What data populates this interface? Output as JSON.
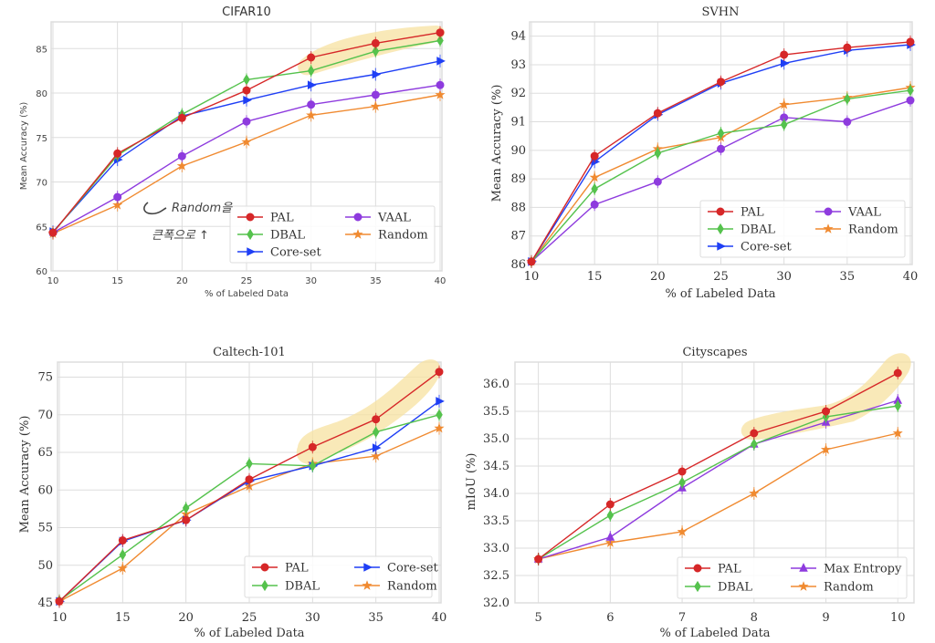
{
  "colors": {
    "PAL": "#d62728",
    "DBAL": "#55c24d",
    "Core-set": "#1f3ff5",
    "VAAL": "#8e3bde",
    "Random": "#f08a30",
    "Max Entropy": "#8e3bde",
    "highlight": "#f7e2a0",
    "grid": "#dddddd",
    "frame": "#dddddd"
  },
  "chart_data": [
    {
      "id": "cifar10",
      "type": "line",
      "title": "CIFAR10",
      "xlabel": "% of Labeled Data",
      "ylabel": "Mean Accuracy (%)",
      "x": [
        10,
        15,
        20,
        25,
        30,
        35,
        40
      ],
      "xticks": [
        "10",
        "15",
        "20",
        "25",
        "30",
        "35",
        "40"
      ],
      "yticks": [
        "60",
        "65",
        "70",
        "75",
        "80",
        "85"
      ],
      "xlim": [
        10,
        40
      ],
      "ylim": [
        60,
        88
      ],
      "grid": true,
      "legend_position": "lower-right",
      "legend_columns": 2,
      "series": [
        {
          "name": "PAL",
          "marker": "circle",
          "values": [
            64.3,
            73.2,
            77.2,
            80.3,
            84.0,
            85.6,
            86.8
          ]
        },
        {
          "name": "DBAL",
          "marker": "diamond",
          "values": [
            64.3,
            73.0,
            77.6,
            81.5,
            82.5,
            84.7,
            85.9
          ]
        },
        {
          "name": "Core-set",
          "marker": "triangle-right",
          "values": [
            64.4,
            72.5,
            77.4,
            79.2,
            80.9,
            82.1,
            83.6
          ]
        },
        {
          "name": "VAAL",
          "marker": "circle",
          "values": [
            64.3,
            68.3,
            72.9,
            76.8,
            78.7,
            79.8,
            80.9
          ]
        },
        {
          "name": "Random",
          "marker": "star",
          "values": [
            64.2,
            67.4,
            71.8,
            74.5,
            77.5,
            78.5,
            79.8
          ]
        }
      ],
      "legend_order": [
        "PAL",
        "DBAL",
        "Core-set",
        "VAAL",
        "Random"
      ],
      "annotation": {
        "text_line1": "Random을",
        "text_line2": "큰폭으로 ↑"
      }
    },
    {
      "id": "svhn",
      "type": "line",
      "title": "SVHN",
      "xlabel": "% of Labeled Data",
      "ylabel": "Mean Accuracy (%)",
      "x": [
        10,
        15,
        20,
        25,
        30,
        35,
        40
      ],
      "xticks": [
        "10",
        "15",
        "20",
        "25",
        "30",
        "35",
        "40"
      ],
      "yticks": [
        "86",
        "87",
        "88",
        "89",
        "90",
        "91",
        "92",
        "93",
        "94"
      ],
      "xlim": [
        10,
        40
      ],
      "ylim": [
        86,
        94.5
      ],
      "grid": true,
      "legend_position": "lower-right",
      "legend_columns": 2,
      "series": [
        {
          "name": "PAL",
          "marker": "circle",
          "values": [
            86.1,
            89.8,
            91.3,
            92.4,
            93.35,
            93.6,
            93.8
          ]
        },
        {
          "name": "DBAL",
          "marker": "diamond",
          "values": [
            86.1,
            88.65,
            89.9,
            90.6,
            90.9,
            91.8,
            92.1
          ]
        },
        {
          "name": "Core-set",
          "marker": "triangle-right",
          "values": [
            86.1,
            89.6,
            91.25,
            92.35,
            93.05,
            93.5,
            93.7
          ]
        },
        {
          "name": "VAAL",
          "marker": "circle",
          "values": [
            86.1,
            88.1,
            88.9,
            90.05,
            91.15,
            91.0,
            91.75
          ]
        },
        {
          "name": "Random",
          "marker": "star",
          "values": [
            86.1,
            89.05,
            90.05,
            90.45,
            91.6,
            91.85,
            92.2
          ]
        }
      ],
      "legend_order": [
        "PAL",
        "DBAL",
        "Core-set",
        "VAAL",
        "Random"
      ]
    },
    {
      "id": "caltech101",
      "type": "line",
      "title": "Caltech-101",
      "xlabel": "% of Labeled Data",
      "ylabel": "Mean Accuracy (%)",
      "x": [
        10,
        15,
        20,
        25,
        30,
        35,
        40
      ],
      "xticks": [
        "10",
        "15",
        "20",
        "25",
        "30",
        "35",
        "40"
      ],
      "yticks": [
        "45",
        "50",
        "55",
        "60",
        "65",
        "70",
        "75"
      ],
      "xlim": [
        10,
        40
      ],
      "ylim": [
        45,
        77
      ],
      "grid": true,
      "legend_position": "lower-right",
      "legend_columns": 2,
      "series": [
        {
          "name": "PAL",
          "marker": "circle",
          "values": [
            45.2,
            53.3,
            56.0,
            61.4,
            65.7,
            69.4,
            75.7
          ]
        },
        {
          "name": "DBAL",
          "marker": "diamond",
          "values": [
            45.3,
            51.4,
            57.6,
            63.5,
            63.2,
            67.7,
            70.0
          ]
        },
        {
          "name": "Core-set",
          "marker": "triangle-right",
          "values": [
            45.2,
            53.2,
            56.0,
            61.2,
            63.2,
            65.6,
            71.8
          ]
        },
        {
          "name": "Random",
          "marker": "star",
          "values": [
            45.2,
            49.6,
            56.8,
            60.5,
            63.5,
            64.5,
            68.2
          ]
        }
      ],
      "legend_order": [
        "PAL",
        "DBAL",
        "Core-set",
        "Random"
      ]
    },
    {
      "id": "cityscapes",
      "type": "line",
      "title": "Cityscapes",
      "xlabel": "% of Labeled Data",
      "ylabel": "mIoU (%)",
      "x": [
        5,
        6,
        7,
        8,
        9,
        10
      ],
      "xticks": [
        "5",
        "6",
        "7",
        "8",
        "9",
        "10"
      ],
      "yticks": [
        "32.0",
        "32.5",
        "33.0",
        "33.5",
        "34.0",
        "34.5",
        "35.0",
        "35.5",
        "36.0"
      ],
      "xlim": [
        4.7,
        10.2
      ],
      "ylim": [
        32.0,
        36.4
      ],
      "grid": true,
      "legend_position": "lower-right",
      "legend_columns": 2,
      "series": [
        {
          "name": "PAL",
          "marker": "circle",
          "values": [
            32.8,
            33.8,
            34.4,
            35.1,
            35.5,
            36.2
          ]
        },
        {
          "name": "DBAL",
          "marker": "diamond",
          "values": [
            32.8,
            33.6,
            34.2,
            34.9,
            35.4,
            35.6
          ]
        },
        {
          "name": "Max Entropy",
          "marker": "triangle-up",
          "values": [
            32.8,
            33.2,
            34.1,
            34.9,
            35.3,
            35.7
          ]
        },
        {
          "name": "Random",
          "marker": "star",
          "values": [
            32.8,
            33.1,
            33.3,
            34.0,
            34.8,
            35.1
          ]
        }
      ],
      "legend_order": [
        "PAL",
        "DBAL",
        "Max Entropy",
        "Random"
      ]
    }
  ]
}
